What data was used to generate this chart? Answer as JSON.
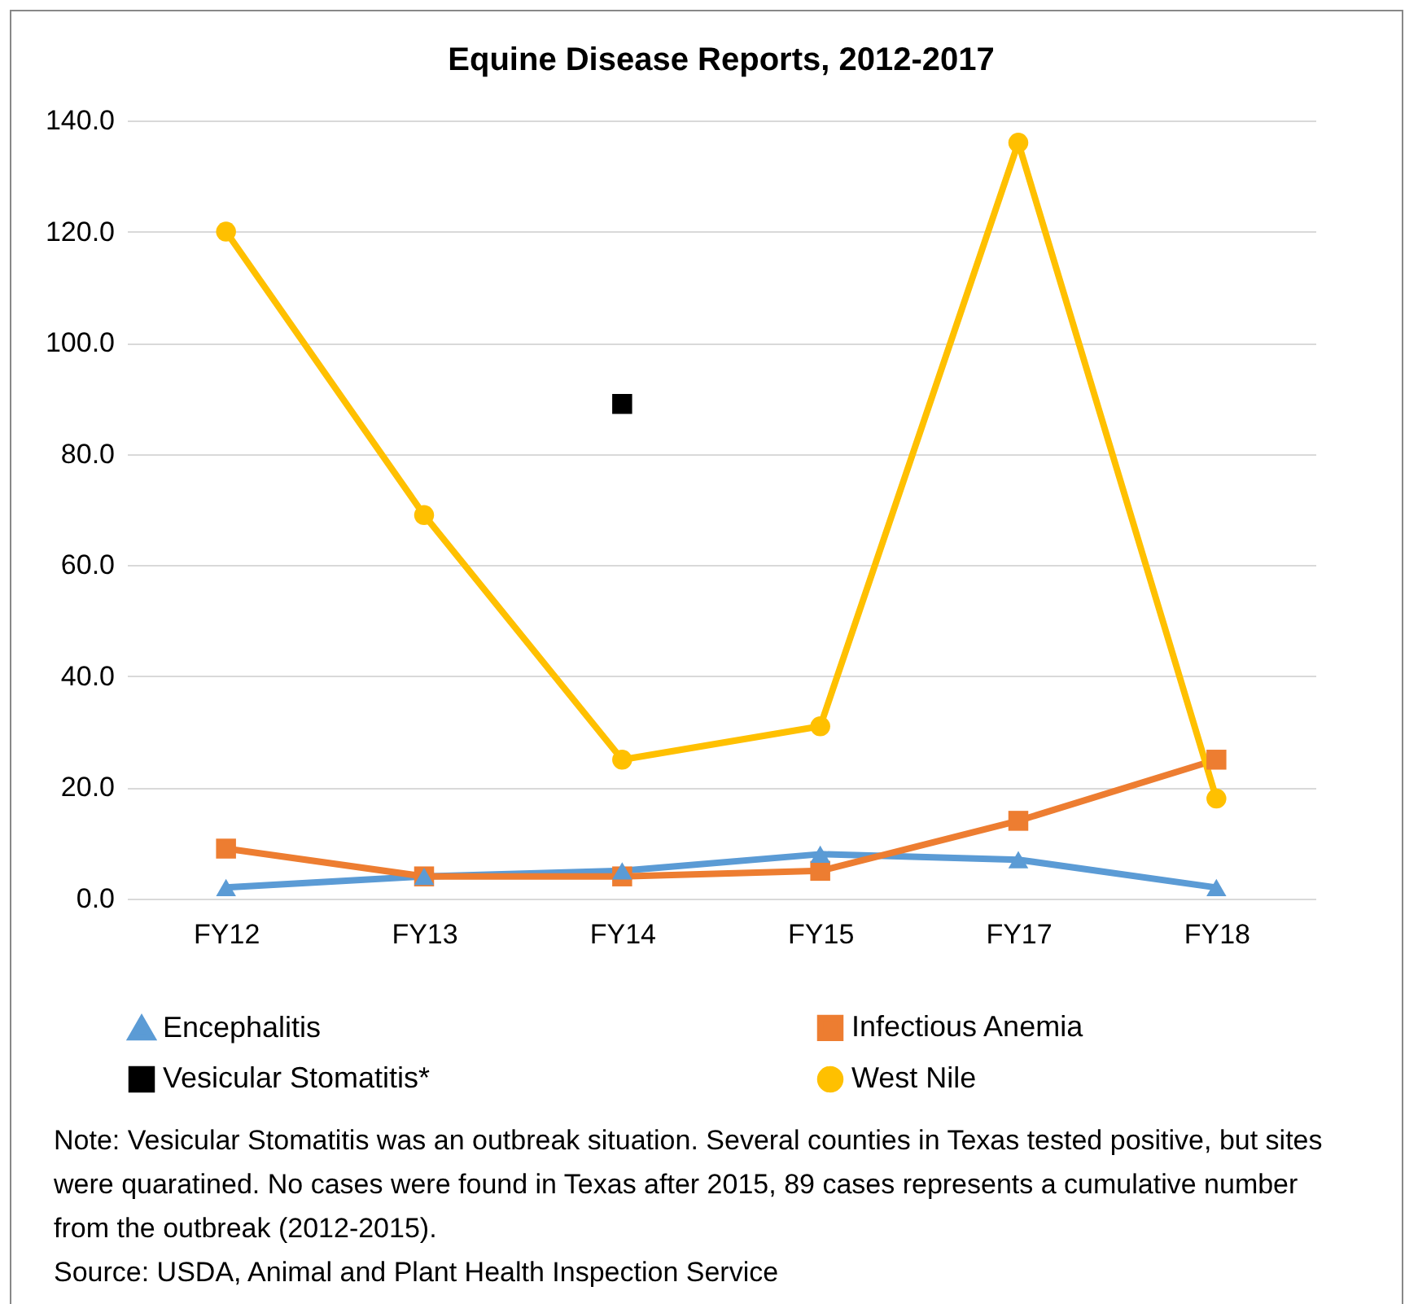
{
  "chart_data": {
    "type": "line",
    "title": "Equine Disease Reports, 2012-2017",
    "categories": [
      "FY12",
      "FY13",
      "FY14",
      "FY15",
      "FY17",
      "FY18"
    ],
    "series": [
      {
        "name": "Encephalitis",
        "color": "#5b9bd5",
        "marker": "triangle",
        "values": [
          2,
          4,
          5,
          8,
          7,
          2
        ]
      },
      {
        "name": "Infectious Anemia",
        "color": "#ed7d31",
        "marker": "square",
        "values": [
          9,
          4,
          4,
          5,
          14,
          25
        ]
      },
      {
        "name": "Vesicular Stomatitis*",
        "color": "#000000",
        "marker": "square",
        "values": [
          null,
          null,
          89,
          null,
          null,
          null
        ]
      },
      {
        "name": "West Nile",
        "color": "#ffc000",
        "marker": "circle",
        "values": [
          120,
          69,
          25,
          31,
          136,
          18
        ]
      }
    ],
    "ylim": [
      0,
      140
    ],
    "yticks": [
      {
        "value": 0,
        "label": "0.0"
      },
      {
        "value": 20,
        "label": "20.0"
      },
      {
        "value": 40,
        "label": "40.0"
      },
      {
        "value": 60,
        "label": "60.0"
      },
      {
        "value": 80,
        "label": "80.0"
      },
      {
        "value": 100,
        "label": "100.0"
      },
      {
        "value": 120,
        "label": "120.0"
      },
      {
        "value": 140,
        "label": "140.0"
      }
    ],
    "grid": "y",
    "legend": "bottom",
    "line_style": "solid",
    "annotations": [
      "Note: Vesicular Stomatitis was an outbreak situation. Several counties in Texas tested positive, but sites were quaratined. No cases were found in Texas after 2015, 89 cases represents a cumulative number from the outbreak (2012-2015).",
      "Source: USDA, Animal and Plant Health Inspection Service"
    ]
  }
}
